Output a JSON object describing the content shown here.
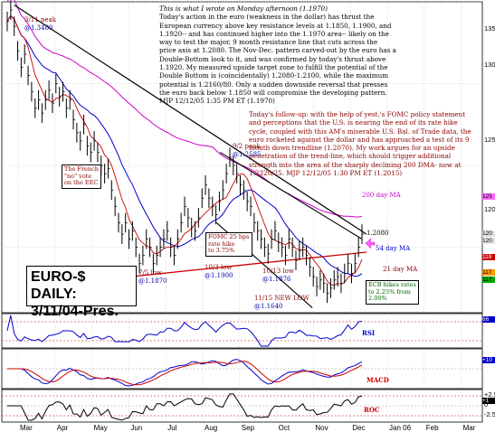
{
  "chart_data": {
    "type": "line",
    "title": "EURO-$ DAILY:",
    "subtitle": "3/11/04-Pres.",
    "x_axis": {
      "tick_labels": [
        "Mar",
        "Apr",
        "May",
        "Jun",
        "Jul",
        "Aug",
        "Sep",
        "Oct",
        "Nov",
        "Dec",
        "Jan 06",
        "Feb",
        "Mar"
      ]
    },
    "y_axis": {
      "range": [
        1.16,
        1.35
      ],
      "tick_labels": [
        "135",
        "130",
        "125",
        "120"
      ]
    },
    "grid": true,
    "price_tags": [
      "120",
      "120",
      "119",
      "117",
      "117",
      "125"
    ],
    "closes": [
      1.338,
      1.345,
      1.335,
      1.32,
      1.31,
      1.318,
      1.305,
      1.295,
      1.285,
      1.29,
      1.282,
      1.29,
      1.296,
      1.288,
      1.3,
      1.292,
      1.295,
      1.285,
      1.29,
      1.278,
      1.27,
      1.265,
      1.275,
      1.262,
      1.258,
      1.265,
      1.258,
      1.25,
      1.245,
      1.248,
      1.235,
      1.225,
      1.215,
      1.208,
      1.215,
      1.205,
      1.21,
      1.2,
      1.19,
      1.195,
      1.205,
      1.2,
      1.19,
      1.195,
      1.2,
      1.205,
      1.21,
      1.2,
      1.195,
      1.205,
      1.215,
      1.225,
      1.218,
      1.212,
      1.21,
      1.218,
      1.23,
      1.238,
      1.23,
      1.225,
      1.22,
      1.228,
      1.235,
      1.245,
      1.255,
      1.25,
      1.245,
      1.238,
      1.235,
      1.228,
      1.225,
      1.215,
      1.21,
      1.205,
      1.2,
      1.196,
      1.205,
      1.21,
      1.203,
      1.2,
      1.195,
      1.205,
      1.2,
      1.192,
      1.198,
      1.2,
      1.195,
      1.188,
      1.182,
      1.176,
      1.18,
      1.178,
      1.172,
      1.175,
      1.18,
      1.182,
      1.178,
      1.184,
      1.19,
      1.184,
      1.19,
      1.2,
      1.208
    ],
    "annotations": [
      {
        "text": "3/11 peak",
        "value": "@1.3480"
      },
      {
        "text": "9/2 peak",
        "value": "@1.2585"
      },
      {
        "text": "7/5 low",
        "value": "@1.1870"
      },
      {
        "text": "10/3 low",
        "value": "@1.1900"
      },
      {
        "text": "10/13 low",
        "value": "@1.1876"
      },
      {
        "text": "11/15 NEW LOW",
        "value": "@1.1640"
      },
      {
        "text": "1.2080"
      },
      {
        "text": "200 day MA"
      },
      {
        "text": "54 day MA"
      },
      {
        "text": "21 day MA"
      }
    ],
    "boxed_notes": [
      {
        "lines": [
          "The French",
          "\"no\" vote",
          "on the EEC"
        ]
      },
      {
        "lines": [
          "FOMC 25 bps",
          "rate hike",
          "to 3.75%"
        ]
      },
      {
        "lines": [
          "ECB hikes rates",
          "to 2.25% from",
          "2.00%"
        ]
      }
    ],
    "indicators": [
      {
        "name": "RSI",
        "tag": "66"
      },
      {
        "name": "MACD",
        "tag": "+10"
      },
      {
        "name": "ROC",
        "tag": "+1",
        "tick_labels": [
          "+2.5",
          "0",
          "-2.5"
        ]
      }
    ]
  },
  "commentary": {
    "lead": "This is what I wrote on Monday afternoon (1.1970)",
    "body": "Today's action in the euro (weakness in the dollar) has thrust the European currency above key resistance levels at 1.1850, 1.1900, and 1.1920-- and has continued higher into the 1.1970 area-- likely on the way to test the major, 9 month resistance line that cuts across the price axis at 1.2080. The Nov-Dec. pattern carved-out by the euro has a Double-Bottom look to it, and was confirmed by today's thrust above 1.1920. My measured upside target zone to fulfill the potential of the Double Bottom is (coincidentally) 1.2080-1.2100, while the maximum potential is 1.2160/80. Only a sudden downside reversal that presses the euro back below 1.1850 will compromise the developing pattern. MJP 12/12/05 1:35 PM ET (1.1970)",
    "followup": "Today's follow-up: with the help of yest.'s FOMC policy statement and perceptions that the U.S. is nearing the end of its rate hike cycle, coupled with this AM's miserable U.S. Bal. of Trade data, the euro rocketed against the dollar and has approached a test of its 9 month down trendline (1.2070). My work argues for an upside penetration of the trend-line, which should trigger additional strength into the area of the sharply declining 200 DMA- now at 1.2320/25. MJP 12/12/05 1:30 PM ET (1.2015)"
  },
  "colors": {
    "price": "#000000",
    "ma200": "#cc00cc",
    "ma54": "#0000cc",
    "ma21": "#cc0000",
    "trendline": "#000000",
    "support": "#cc0000",
    "note_red": "#8b0000"
  }
}
